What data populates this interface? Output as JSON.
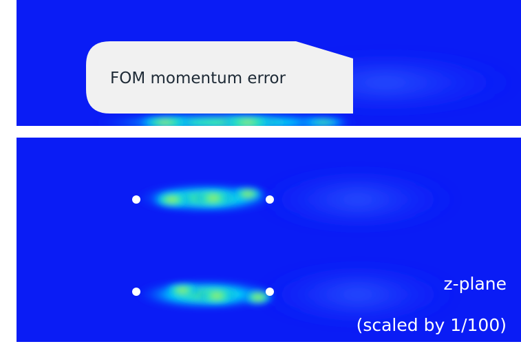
{
  "callout": {
    "text": "FOM momentum error"
  },
  "annotation": {
    "lines": [
      "z-plane",
      "(scaled by 1/100)"
    ]
  }
}
